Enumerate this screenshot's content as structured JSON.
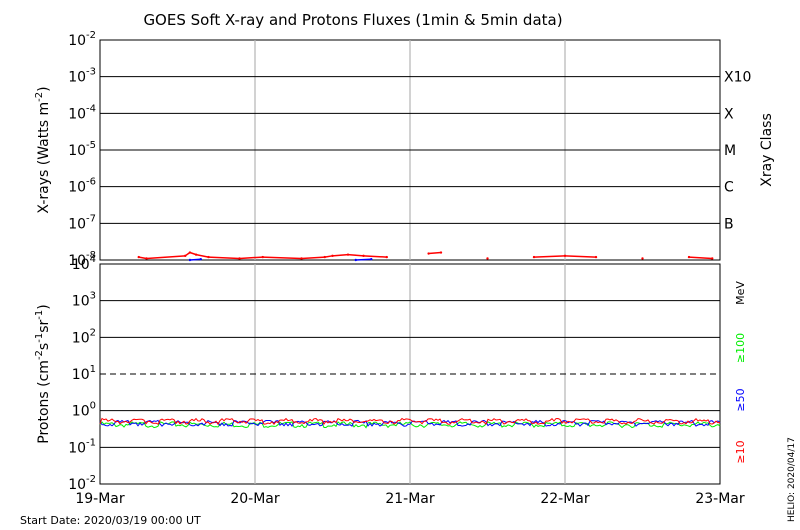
{
  "chart_data": [
    {
      "type": "line",
      "panel": "xray",
      "title": "GOES Soft X-ray and Protons Fluxes   (1min & 5min data)",
      "ylabel_main": "X-rays (Watts m",
      "ylabel_sup": "-2",
      "ylabel_end": ")",
      "y_scale": "log",
      "ylim": [
        1e-08,
        0.01
      ],
      "y_ticks": [
        {
          "base": "10",
          "exp": "-2"
        },
        {
          "base": "10",
          "exp": "-3"
        },
        {
          "base": "10",
          "exp": "-4"
        },
        {
          "base": "10",
          "exp": "-5"
        },
        {
          "base": "10",
          "exp": "-6"
        },
        {
          "base": "10",
          "exp": "-7"
        },
        {
          "base": "10",
          "exp": "-8"
        }
      ],
      "flare_class_label": "Xray Class",
      "flare_classes": [
        {
          "label": "X10",
          "level": 0.001
        },
        {
          "label": "X",
          "level": 0.0001
        },
        {
          "label": "M",
          "level": 1e-05
        },
        {
          "label": "C",
          "level": 1e-06
        },
        {
          "label": "B",
          "level": 1e-07
        }
      ],
      "grid": true,
      "series": [
        {
          "color": "#ff0000",
          "points": [
            [
              0.25,
              1.2e-08
            ],
            [
              0.3,
              1.1e-08
            ],
            [
              0.55,
              1.3e-08
            ],
            [
              0.58,
              1.6e-08
            ],
            [
              0.62,
              1.4e-08
            ],
            [
              0.7,
              1.2e-08
            ],
            [
              0.9,
              1.1e-08
            ],
            [
              1.05,
              1.2e-08
            ],
            [
              1.3,
              1.1e-08
            ],
            [
              1.45,
              1.2e-08
            ],
            [
              1.5,
              1.3e-08
            ],
            [
              1.6,
              1.4e-08
            ],
            [
              1.7,
              1.3e-08
            ],
            [
              1.85,
              1.2e-08
            ],
            [
              2.12,
              1.5e-08
            ],
            [
              2.2,
              1.6e-08
            ],
            [
              2.5,
              1.1e-08
            ],
            [
              2.8,
              1.2e-08
            ],
            [
              3.0,
              1.3e-08
            ],
            [
              3.2,
              1.2e-08
            ],
            [
              3.5,
              1.1e-08
            ],
            [
              3.8,
              1.2e-08
            ],
            [
              3.95,
              1.1e-08
            ]
          ]
        },
        {
          "color": "#0000ff",
          "points": [
            [
              0.58,
              1e-08
            ],
            [
              0.65,
              1.05e-08
            ],
            [
              1.65,
              1e-08
            ],
            [
              1.75,
              1.05e-08
            ]
          ]
        }
      ]
    },
    {
      "type": "line",
      "panel": "protons",
      "ylabel_main": "Protons (cm",
      "ylabel_sup1": "-2",
      "ylabel_mid1": "s",
      "ylabel_sup2": "-1",
      "ylabel_mid2": "sr",
      "ylabel_sup3": "-1",
      "ylabel_end": ")",
      "y_scale": "log",
      "ylim": [
        0.01,
        10000
      ],
      "y_ticks": [
        {
          "base": "10",
          "exp": "4"
        },
        {
          "base": "10",
          "exp": "3"
        },
        {
          "base": "10",
          "exp": "2"
        },
        {
          "base": "10",
          "exp": "1"
        },
        {
          "base": "10",
          "exp": "0"
        },
        {
          "base": "10",
          "exp": "-1"
        },
        {
          "base": "10",
          "exp": "-2"
        }
      ],
      "threshold": 10,
      "energy_unit": "MeV",
      "series": [
        {
          "name": "≥100",
          "color": "#00ee00",
          "level": 0.42
        },
        {
          "name": "≥50",
          "color": "#0000ff",
          "level": 0.46
        },
        {
          "name": "≥10",
          "color": "#ff0000",
          "level": 0.52
        }
      ]
    }
  ],
  "x_axis": {
    "x_ticks": [
      "19-Mar",
      "20-Mar",
      "21-Mar",
      "22-Mar",
      "23-Mar"
    ],
    "xlim": [
      0,
      4
    ]
  },
  "footer": {
    "start_date": "Start Date: 2020/03/19 00:00 UT",
    "credit": "HELIO: 2020/04/17"
  }
}
